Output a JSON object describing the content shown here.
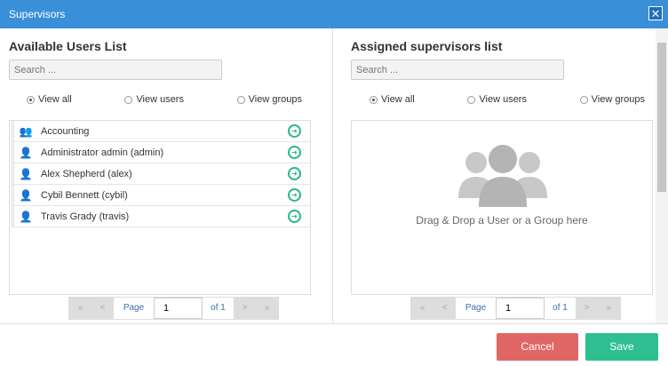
{
  "window": {
    "title": "Supervisors",
    "close": "✕"
  },
  "available": {
    "title": "Available Users List",
    "search_placeholder": "Search ...",
    "filters": [
      "View all",
      "View users",
      "View groups"
    ],
    "selected_filter": "View all",
    "items": [
      {
        "label": "Accounting",
        "icon": "group-icon"
      },
      {
        "label": "Administrator admin (admin)",
        "icon": "user-icon"
      },
      {
        "label": "Alex Shepherd (alex)",
        "icon": "user-icon"
      },
      {
        "label": "Cybil Bennett (cybil)",
        "icon": "user-icon"
      },
      {
        "label": "Travis Grady (travis)",
        "icon": "user-icon"
      }
    ],
    "pager": {
      "first": "«",
      "prev": "<",
      "page_label": "Page",
      "page": "1",
      "of": "of 1",
      "next": ">",
      "last": "»"
    }
  },
  "assigned": {
    "title": "Assigned supervisors list",
    "search_placeholder": "Search ...",
    "filters": [
      "View all",
      "View users",
      "View groups"
    ],
    "selected_filter": "View all",
    "drop_text": "Drag & Drop a User or a Group here",
    "pager": {
      "first": "«",
      "prev": "<",
      "page_label": "Page",
      "page": "1",
      "of": "of 1",
      "next": ">",
      "last": "»"
    }
  },
  "footer": {
    "cancel": "Cancel",
    "save": "Save"
  },
  "colors": {
    "titlebar": "#3a8fd9",
    "cancel": "#e06666",
    "save": "#2ebf91",
    "add_icon": "#2bb58a"
  }
}
